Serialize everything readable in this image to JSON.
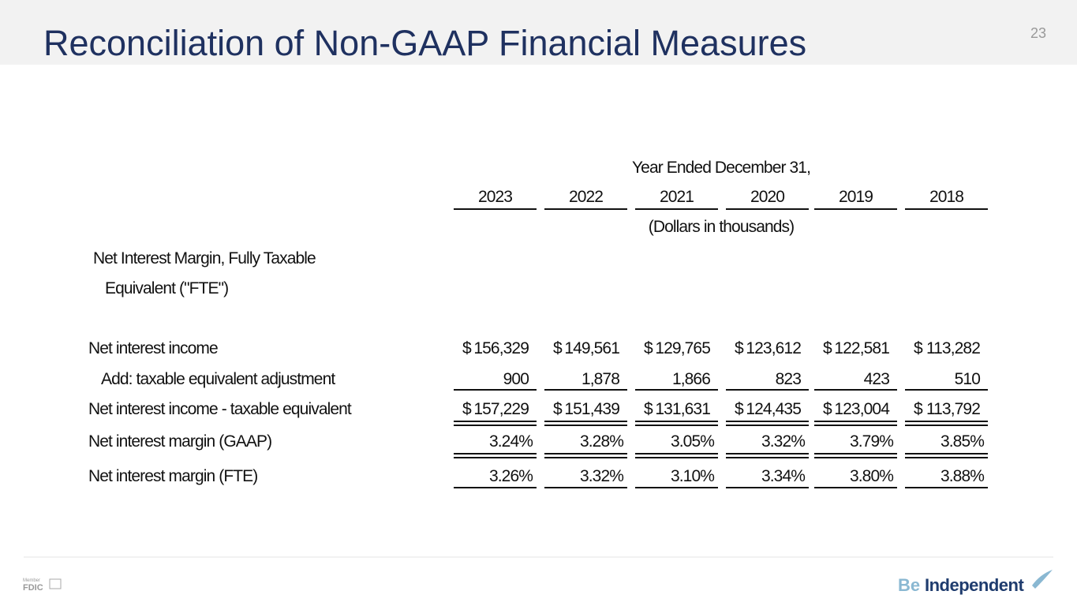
{
  "header": {
    "title": "Reconciliation of Non-GAAP Financial Measures",
    "page_number": "23"
  },
  "table": {
    "super_header": "Year Ended December 31,",
    "columns": [
      "2023",
      "2022",
      "2021",
      "2020",
      "2019",
      "2018"
    ],
    "sub_header": "(Dollars in thousands)",
    "section": [
      "Net Interest Margin, Fully Taxable",
      "Equivalent (\"FTE\")"
    ],
    "rows": [
      {
        "label": "Net interest income",
        "currency": "$",
        "values": [
          "156,329",
          "149,561",
          "129,765",
          "123,612",
          "122,581",
          "113,282"
        ]
      },
      {
        "label": "Add:  taxable equivalent adjustment",
        "values": [
          "900",
          "1,878",
          "1,866",
          "823",
          "423",
          "510"
        ]
      },
      {
        "label": "Net interest income - taxable equivalent",
        "currency": "$",
        "values": [
          "157,229",
          "151,439",
          "131,631",
          "124,435",
          "123,004",
          "113,792"
        ]
      },
      {
        "label": "Net interest margin (GAAP)",
        "values": [
          "3.24%",
          "3.28%",
          "3.05%",
          "3.32%",
          "3.79%",
          "3.85%"
        ]
      },
      {
        "label": "Net interest margin (FTE)",
        "values": [
          "3.26%",
          "3.32%",
          "3.10%",
          "3.34%",
          "3.80%",
          "3.88%"
        ]
      }
    ]
  },
  "footer": {
    "member": "Member",
    "fdic": "FDIC",
    "brand_prefix": "Be",
    "brand": "Independent"
  }
}
